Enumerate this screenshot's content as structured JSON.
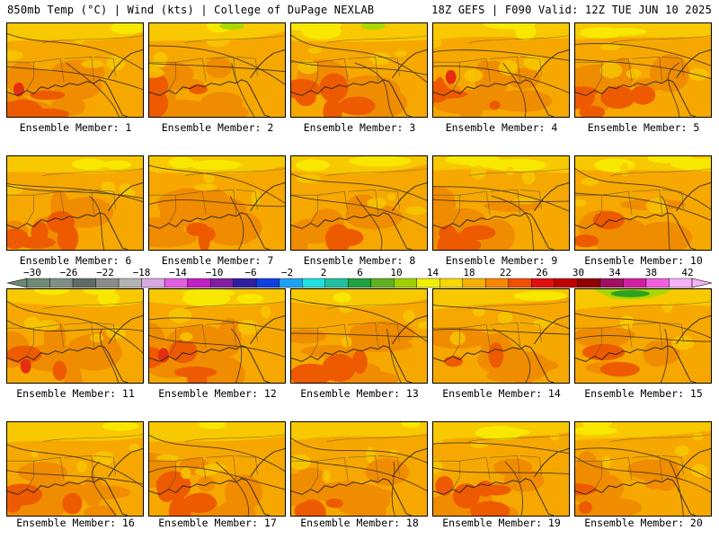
{
  "header": {
    "left": "850mb Temp (°C) | Wind (kts) | College of DuPage NEXLAB",
    "right": "18Z GEFS | F090 Valid: 12Z TUE JUN 10 2025"
  },
  "members": [
    "Ensemble Member: 1",
    "Ensemble Member: 2",
    "Ensemble Member: 3",
    "Ensemble Member: 4",
    "Ensemble Member: 5",
    "Ensemble Member: 6",
    "Ensemble Member: 7",
    "Ensemble Member: 8",
    "Ensemble Member: 9",
    "Ensemble Member: 10",
    "Ensemble Member: 11",
    "Ensemble Member: 12",
    "Ensemble Member: 13",
    "Ensemble Member: 14",
    "Ensemble Member: 15",
    "Ensemble Member: 16",
    "Ensemble Member: 17",
    "Ensemble Member: 18",
    "Ensemble Member: 19",
    "Ensemble Member: 20"
  ],
  "colorbar": {
    "ticks": [
      "−30",
      "−26",
      "−22",
      "−18",
      "−14",
      "−10",
      "−6",
      "−2",
      "2",
      "6",
      "10",
      "14",
      "18",
      "22",
      "26",
      "30",
      "34",
      "38",
      "42"
    ],
    "colors": [
      "#6e8a76",
      "#7f8f86",
      "#606a66",
      "#8c8c8c",
      "#b4b4b4",
      "#d8a8e0",
      "#e060e0",
      "#c020c0",
      "#8020a0",
      "#3020a0",
      "#1040e0",
      "#20a0f0",
      "#20e0e0",
      "#20c0a0",
      "#20a040",
      "#60b020",
      "#a0d000",
      "#f0f000",
      "#f8d800",
      "#f8b000",
      "#f88800",
      "#f05000",
      "#e01010",
      "#c00000",
      "#900000",
      "#a01060",
      "#d020a0",
      "#f060e0",
      "#f8b0f8"
    ]
  },
  "panel_colors": {
    "base": "#f6a800",
    "warm": "#f08c00",
    "hot": "#ee5a00",
    "veryhot": "#e52e10",
    "cool": "#f8c800",
    "cooler": "#f8e800",
    "green": "#a8d800",
    "dkgreen": "#30a020"
  }
}
